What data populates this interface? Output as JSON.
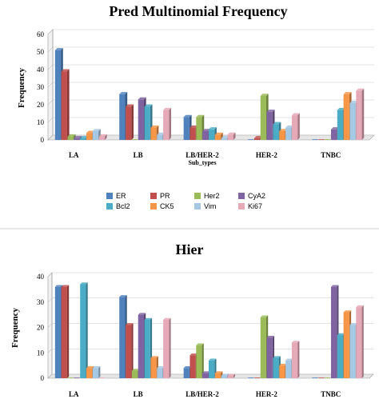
{
  "chart_data": [
    {
      "type": "bar",
      "title": "Pred Multinomial Frequency",
      "xlabel": "Sub_types",
      "ylabel": "Frequency",
      "ylim": [
        0,
        60
      ],
      "yticks": [
        0,
        10,
        20,
        30,
        40,
        50,
        60
      ],
      "categories": [
        "LA",
        "LB",
        "LB/HER-2",
        "HER-2",
        "TNBC"
      ],
      "legend_position": "bottom",
      "series": [
        {
          "name": "ER",
          "color": "#4f81bd",
          "values": [
            51,
            26,
            13,
            0,
            0
          ]
        },
        {
          "name": "PR",
          "color": "#c0504d",
          "values": [
            39,
            19,
            7,
            1,
            0
          ]
        },
        {
          "name": "Her2",
          "color": "#9bbb59",
          "values": [
            2,
            0,
            13,
            25,
            0
          ]
        },
        {
          "name": "CyA2",
          "color": "#8064a2",
          "values": [
            1,
            23,
            5,
            16,
            6
          ]
        },
        {
          "name": "Bcl2",
          "color": "#4bacc6",
          "values": [
            1,
            19,
            6,
            9,
            17
          ]
        },
        {
          "name": "CK5",
          "color": "#f79646",
          "values": [
            4,
            7,
            3,
            5,
            26
          ]
        },
        {
          "name": "Vim",
          "color": "#a5c8e4",
          "values": [
            5,
            3,
            1,
            7,
            21
          ]
        },
        {
          "name": "Ki67",
          "color": "#e6a9b7",
          "values": [
            2,
            17,
            3,
            14,
            28
          ]
        }
      ]
    },
    {
      "type": "bar",
      "title": "Hier",
      "xlabel": "",
      "ylabel": "Frequency",
      "ylim": [
        0,
        40
      ],
      "yticks": [
        0,
        10,
        20,
        30,
        40
      ],
      "categories": [
        "LA",
        "LB",
        "LB/HER-2",
        "HER-2",
        "TNBC"
      ],
      "series": [
        {
          "color": "#4f81bd",
          "values": [
            36,
            32,
            4,
            0,
            0
          ]
        },
        {
          "color": "#c0504d",
          "values": [
            36,
            21,
            9,
            0,
            0
          ]
        },
        {
          "color": "#9bbb59",
          "values": [
            0,
            3,
            13,
            24,
            0
          ]
        },
        {
          "color": "#8064a2",
          "values": [
            0,
            25,
            2,
            16,
            36
          ]
        },
        {
          "color": "#4bacc6",
          "values": [
            37,
            23,
            7,
            8,
            17
          ]
        },
        {
          "color": "#f79646",
          "values": [
            4,
            8,
            2,
            5,
            26
          ]
        },
        {
          "color": "#a5c8e4",
          "values": [
            4,
            4,
            1,
            7,
            21
          ]
        },
        {
          "color": "#e6a9b7",
          "values": [
            0,
            23,
            1,
            14,
            28
          ]
        }
      ]
    }
  ]
}
